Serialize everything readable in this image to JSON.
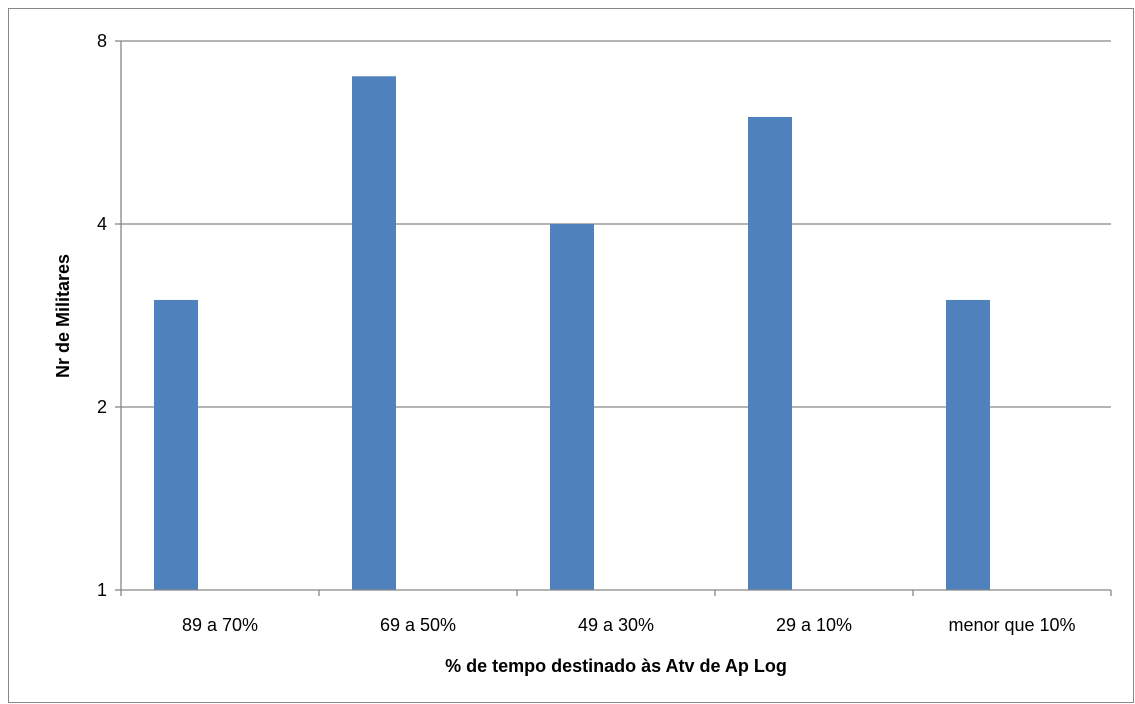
{
  "chart_data": {
    "type": "bar",
    "categories": [
      "89 a 70%",
      "69 a 50%",
      "49 a 30%",
      "29 a 10%",
      "menor que 10%"
    ],
    "values": [
      3,
      7,
      4,
      6,
      3
    ],
    "xlabel": "% de tempo destinado às Atv de Ap Log",
    "ylabel": "Nr de Militares",
    "y_scale": "log2",
    "ylim": [
      1,
      8
    ],
    "y_ticks": [
      1,
      2,
      4,
      8
    ],
    "y_tick_labels": [
      "1",
      "2",
      "4",
      "8"
    ],
    "grid": true,
    "legend": "none",
    "colors": {
      "bar": "#4F81BD",
      "grid": "#868686",
      "axis": "#868686",
      "frame": "#878787"
    }
  }
}
